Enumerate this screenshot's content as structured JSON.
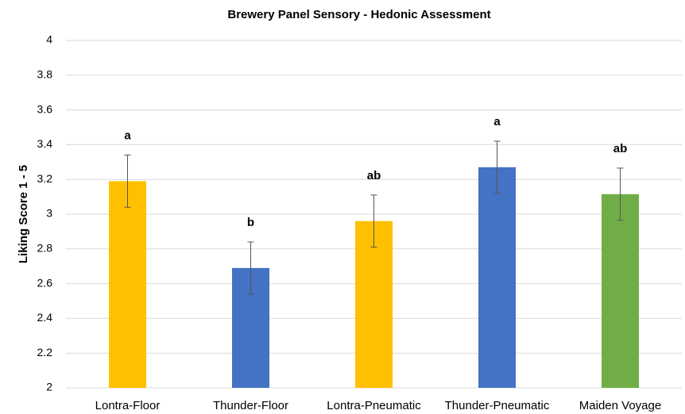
{
  "chart_data": {
    "type": "bar",
    "title": "Brewery Panel Sensory - Hedonic Assessment",
    "y_label": "Liking Score 1 - 5",
    "categories": [
      "Lontra-Floor",
      "Thunder-Floor",
      "Lontra-Pneumatic",
      "Thunder-Pneumatic",
      "Maiden Voyage"
    ],
    "values": [
      3.19,
      2.69,
      2.96,
      3.27,
      3.115
    ],
    "errors": [
      0.15,
      0.15,
      0.15,
      0.15,
      0.15
    ],
    "annotations": [
      "a",
      "b",
      "ab",
      "a",
      "ab"
    ],
    "colors": [
      "#ffc000",
      "#4472c4",
      "#ffc000",
      "#4472c4",
      "#70ad47"
    ],
    "ylim": [
      2,
      4
    ],
    "yticks": [
      2,
      2.2,
      2.4,
      2.6,
      2.8,
      3,
      3.2,
      3.4,
      3.6,
      3.8,
      4
    ],
    "grid": true
  }
}
